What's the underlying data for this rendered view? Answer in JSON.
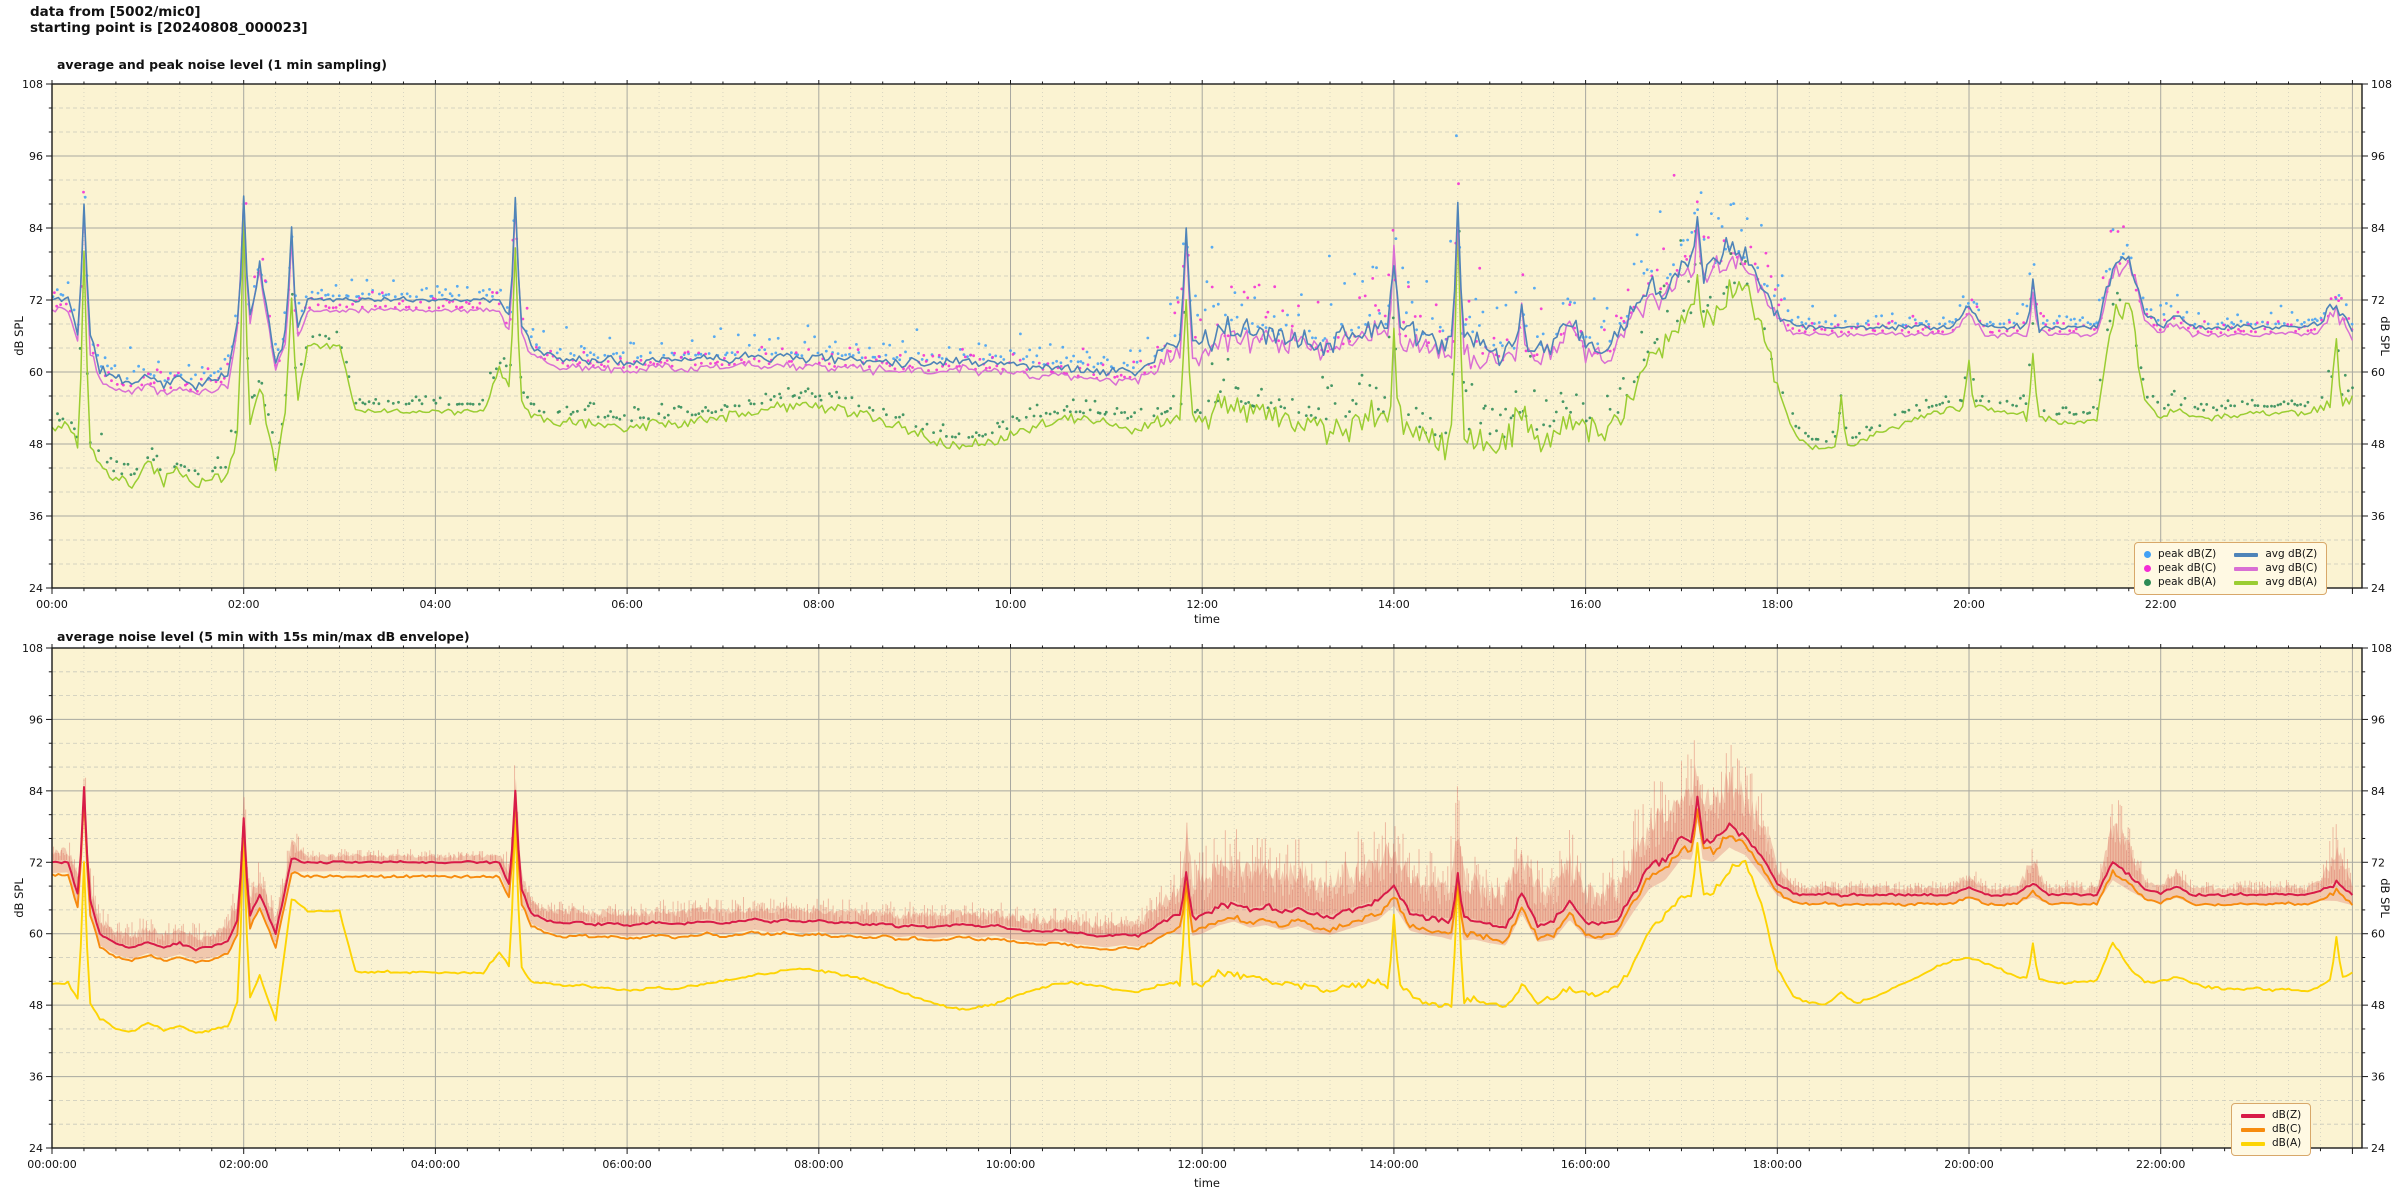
{
  "header": {
    "line1": "data from [5002/mic0]",
    "line2": "starting point is [20240808_000023]"
  },
  "colors": {
    "plot_bg": "#fbf3d2",
    "grid_major": "#a8a8a0",
    "grid_minor": "#c9c9bb",
    "frame": "#1a1a1a",
    "peak_dBZ": "#42a1f5",
    "peak_dBC": "#f42cd4",
    "peak_dBA": "#2e8b57",
    "avg_dBZ": "#4f84b8",
    "avg_dBC": "#d96fd4",
    "avg_dBA": "#9acd32",
    "dBZ": "#d81b48",
    "dBC": "#f78b0e",
    "dBA": "#fdd404",
    "envelope": "#d65a4e",
    "legend_bg": "#fff9e3",
    "legend_border": "#d8a86a"
  },
  "axes": {
    "ymin": 24,
    "ymax": 108,
    "y_major": 12,
    "y_minor": 4,
    "x_hours_max": 24.1,
    "x_major_h": 2,
    "x_minor_h": 0.3333333,
    "sample_step_h": 0.1666667,
    "y_ticklabels": [
      "24",
      "36",
      "48",
      "60",
      "72",
      "84",
      "96",
      "108"
    ]
  },
  "chart_data": [
    {
      "type": "line+scatter",
      "title": "average and peak noise level (1 min sampling)",
      "xlabel": "time",
      "ylabel": "dB SPL",
      "x_ticklabels": [
        "00:00",
        "02:00",
        "04:00",
        "06:00",
        "08:00",
        "10:00",
        "12:00",
        "14:00",
        "16:00",
        "18:00",
        "20:00",
        "22:00"
      ],
      "legend": [
        {
          "label": "peak dB(Z)",
          "swatch": "dot",
          "color_key": "peak_dBZ"
        },
        {
          "label": "peak dB(C)",
          "swatch": "dot",
          "color_key": "peak_dBC"
        },
        {
          "label": "peak dB(A)",
          "swatch": "dot",
          "color_key": "peak_dBA"
        },
        {
          "label": "avg dB(Z)",
          "swatch": "line",
          "color_key": "avg_dBZ"
        },
        {
          "label": "avg dB(C)",
          "swatch": "line",
          "color_key": "avg_dBC"
        },
        {
          "label": "avg dB(A)",
          "swatch": "line",
          "color_key": "avg_dBA"
        }
      ],
      "series": {
        "avg_dBZ": [
          72.0,
          72.2,
          88.5,
          60.5,
          59.0,
          58.2,
          59.4,
          58.0,
          59.0,
          57.8,
          58.4,
          59.6,
          89.0,
          77.5,
          61.5,
          83.0,
          72.3,
          72.1,
          72.2,
          72.0,
          72.1,
          72.0,
          72.1,
          72.0,
          72.1,
          72.0,
          72.1,
          72.0,
          72.0,
          89.0,
          64.5,
          62.8,
          62.0,
          62.4,
          61.8,
          62.2,
          61.6,
          62.0,
          62.4,
          61.8,
          62.2,
          62.6,
          62.0,
          62.5,
          63.0,
          62.4,
          62.8,
          62.2,
          62.6,
          62.0,
          62.3,
          61.7,
          62.1,
          61.5,
          61.9,
          61.3,
          61.7,
          62.1,
          61.5,
          61.9,
          61.3,
          61.0,
          60.7,
          61.1,
          60.5,
          60.2,
          59.9,
          60.3,
          60.0,
          62.0,
          64.5,
          85.0,
          65.0,
          66.5,
          67.5,
          66.0,
          66.8,
          65.5,
          66.5,
          65.0,
          64.5,
          66.0,
          67.0,
          68.0,
          80.0,
          66.5,
          65.5,
          65.0,
          88.0,
          64.5,
          63.5,
          63.0,
          71.0,
          64.0,
          64.5,
          69.0,
          64.5,
          64.0,
          65.0,
          71.0,
          74.0,
          74.5,
          78.0,
          84.5,
          77.5,
          80.5,
          78.5,
          75.0,
          70.0,
          67.8,
          67.4,
          67.6,
          67.3,
          67.5,
          67.4,
          67.6,
          67.3,
          67.5,
          67.4,
          67.6,
          71.0,
          67.5,
          67.3,
          67.6,
          74.5,
          67.4,
          67.6,
          67.4,
          67.5,
          77.5,
          79.0,
          70.0,
          67.6,
          69.5,
          67.4,
          67.5,
          67.3,
          67.6,
          67.4,
          67.5,
          67.6,
          67.4,
          68.0,
          72.0,
          67.0
        ],
        "avg_dBC": [
          70.5,
          70.7,
          87.7,
          59.0,
          57.5,
          56.7,
          57.9,
          56.5,
          57.5,
          56.3,
          56.9,
          58.1,
          88.2,
          76.7,
          60.0,
          82.2,
          70.3,
          70.3,
          70.3,
          70.3,
          70.3,
          70.3,
          70.3,
          70.3,
          70.3,
          70.3,
          70.3,
          70.3,
          70.3,
          88.2,
          63.0,
          61.3,
          60.5,
          60.9,
          60.3,
          60.7,
          60.1,
          60.5,
          60.9,
          60.3,
          60.7,
          61.1,
          60.5,
          61.0,
          61.5,
          60.9,
          61.3,
          60.7,
          61.1,
          60.5,
          60.8,
          60.2,
          60.6,
          60.0,
          60.4,
          59.8,
          60.2,
          60.6,
          60.0,
          60.4,
          59.8,
          59.5,
          59.2,
          59.6,
          59.0,
          58.7,
          58.4,
          58.8,
          58.5,
          60.5,
          63.0,
          84.2,
          63.5,
          65.0,
          66.0,
          64.5,
          65.3,
          64.0,
          65.0,
          63.5,
          63.0,
          64.5,
          65.5,
          66.5,
          79.2,
          65.0,
          64.0,
          63.5,
          87.2,
          63.0,
          62.0,
          61.5,
          69.5,
          62.5,
          63.0,
          67.5,
          63.0,
          62.5,
          63.5,
          70.0,
          73.0,
          73.5,
          77.0,
          83.7,
          76.5,
          79.5,
          77.5,
          74.0,
          69.0,
          66.6,
          66.2,
          66.4,
          66.1,
          66.3,
          66.2,
          66.4,
          66.1,
          66.3,
          66.2,
          66.4,
          69.8,
          66.3,
          66.1,
          66.4,
          73.8,
          66.2,
          66.4,
          66.2,
          66.3,
          76.7,
          78.2,
          68.8,
          66.4,
          68.3,
          66.2,
          66.3,
          66.1,
          66.4,
          66.2,
          66.3,
          66.4,
          66.2,
          66.8,
          70.8,
          65.8
        ],
        "avg_dBA": [
          50.5,
          51.0,
          80.0,
          44.0,
          42.0,
          41.3,
          44.5,
          42.0,
          43.5,
          41.0,
          42.0,
          43.0,
          84.5,
          58.0,
          44.0,
          73.5,
          64.5,
          64.3,
          64.5,
          53.6,
          53.4,
          53.6,
          53.3,
          53.5,
          53.4,
          53.3,
          53.5,
          53.2,
          60.5,
          80.0,
          52.5,
          52.0,
          51.6,
          51.9,
          51.3,
          51.0,
          50.6,
          50.9,
          51.3,
          51.0,
          51.5,
          51.9,
          52.4,
          52.9,
          53.4,
          53.8,
          54.3,
          54.6,
          54.2,
          53.8,
          53.2,
          52.6,
          51.8,
          50.8,
          49.8,
          48.8,
          48.0,
          47.6,
          47.9,
          48.6,
          49.6,
          50.6,
          51.4,
          52.0,
          52.2,
          51.8,
          51.3,
          50.8,
          50.5,
          51.5,
          52.3,
          73.0,
          52.0,
          54.0,
          53.6,
          53.1,
          52.7,
          52.3,
          51.8,
          51.2,
          50.7,
          51.4,
          52.0,
          52.6,
          67.0,
          50.5,
          48.5,
          48.0,
          86.0,
          49.5,
          48.4,
          47.9,
          52.5,
          49.0,
          50.0,
          52.0,
          50.5,
          50.0,
          51.5,
          56.0,
          63.0,
          65.0,
          68.0,
          77.0,
          69.0,
          73.0,
          74.5,
          68.0,
          57.0,
          50.0,
          47.6,
          47.2,
          56.0,
          48.0,
          49.5,
          50.5,
          51.5,
          52.5,
          53.3,
          54.0,
          62.0,
          54.0,
          53.6,
          53.0,
          64.0,
          52.0,
          51.5,
          51.8,
          52.0,
          70.0,
          71.5,
          55.0,
          52.5,
          53.5,
          52.8,
          52.3,
          52.6,
          52.9,
          53.2,
          53.0,
          53.4,
          53.1,
          54.0,
          67.0,
          56.0
        ]
      }
    },
    {
      "type": "line+envelope",
      "title": "average noise level (5 min with 15s min/max dB envelope)",
      "xlabel": "time",
      "ylabel": "dB SPL",
      "x_ticklabels": [
        "00:00:00",
        "02:00:00",
        "04:00:00",
        "06:00:00",
        "08:00:00",
        "10:00:00",
        "12:00:00",
        "14:00:00",
        "16:00:00",
        "18:00:00",
        "20:00:00",
        "22:00:00"
      ],
      "legend": [
        {
          "label": "dB(Z)",
          "swatch": "line",
          "color_key": "dBZ"
        },
        {
          "label": "dB(C)",
          "swatch": "line",
          "color_key": "dBC"
        },
        {
          "label": "dB(A)",
          "swatch": "line",
          "color_key": "dBA"
        }
      ],
      "series": {
        "dBZ": [
          72.0,
          72.1,
          84.5,
          60.0,
          58.3,
          57.6,
          58.6,
          57.7,
          58.4,
          57.4,
          57.8,
          58.8,
          79.5,
          66.5,
          60.0,
          72.5,
          72.0,
          72.0,
          72.1,
          72.0,
          72.0,
          72.0,
          72.1,
          72.0,
          72.0,
          72.0,
          72.1,
          72.0,
          72.0,
          84.0,
          63.5,
          62.2,
          61.6,
          62.0,
          61.5,
          61.8,
          61.3,
          61.6,
          62.0,
          61.5,
          61.8,
          62.2,
          61.7,
          62.1,
          62.5,
          62.0,
          62.4,
          61.9,
          62.2,
          61.7,
          62.0,
          61.4,
          61.8,
          61.2,
          61.5,
          61.0,
          61.3,
          61.7,
          61.1,
          61.5,
          60.9,
          60.6,
          60.3,
          60.7,
          60.1,
          59.8,
          59.5,
          59.9,
          59.6,
          61.0,
          62.8,
          70.0,
          63.0,
          64.5,
          65.2,
          64.0,
          64.6,
          63.6,
          64.4,
          63.2,
          62.8,
          63.8,
          64.6,
          65.4,
          68.0,
          63.5,
          62.8,
          62.4,
          70.5,
          62.2,
          61.4,
          61.0,
          66.5,
          61.6,
          62.0,
          65.5,
          62.0,
          61.6,
          62.4,
          67.0,
          71.0,
          72.5,
          76.0,
          83.0,
          75.5,
          78.0,
          76.5,
          73.0,
          68.5,
          66.8,
          66.5,
          66.7,
          66.4,
          66.6,
          66.5,
          66.7,
          66.4,
          66.6,
          66.5,
          66.7,
          67.8,
          66.6,
          66.4,
          66.7,
          68.5,
          66.5,
          66.7,
          66.5,
          66.6,
          72.0,
          70.0,
          67.5,
          66.7,
          68.0,
          66.5,
          66.6,
          66.4,
          66.7,
          66.5,
          66.6,
          66.7,
          66.5,
          67.2,
          68.5,
          66.5
        ],
        "dBC": [
          69.8,
          69.9,
          83.3,
          57.8,
          56.1,
          55.4,
          56.4,
          55.5,
          56.2,
          55.2,
          55.6,
          56.6,
          78.3,
          64.3,
          57.8,
          70.3,
          69.6,
          69.6,
          69.6,
          69.6,
          69.6,
          69.6,
          69.6,
          69.6,
          69.6,
          69.6,
          69.6,
          69.6,
          69.6,
          82.8,
          61.3,
          60.0,
          59.4,
          59.8,
          59.3,
          59.6,
          59.1,
          59.4,
          59.8,
          59.3,
          59.6,
          60.0,
          59.5,
          59.9,
          60.3,
          59.8,
          60.2,
          59.7,
          60.0,
          59.5,
          59.8,
          59.2,
          59.6,
          59.0,
          59.3,
          58.8,
          59.1,
          59.5,
          58.9,
          59.3,
          58.7,
          58.4,
          58.1,
          58.5,
          57.9,
          57.6,
          57.3,
          57.7,
          57.4,
          58.8,
          60.6,
          68.2,
          60.8,
          62.3,
          63.0,
          61.8,
          62.4,
          61.4,
          62.2,
          61.0,
          60.6,
          61.6,
          62.4,
          63.2,
          66.2,
          61.3,
          60.6,
          60.2,
          68.7,
          60.0,
          59.2,
          58.8,
          64.3,
          59.4,
          59.8,
          63.3,
          59.8,
          59.4,
          60.2,
          65.5,
          69.5,
          71.0,
          74.5,
          81.5,
          74.0,
          76.5,
          75.0,
          71.5,
          67.0,
          65.2,
          64.9,
          65.1,
          64.8,
          65.0,
          64.9,
          65.1,
          64.8,
          65.0,
          64.9,
          65.1,
          66.3,
          65.0,
          64.8,
          65.1,
          67.0,
          64.9,
          65.1,
          64.9,
          65.0,
          70.6,
          68.6,
          65.9,
          65.1,
          66.5,
          64.9,
          65.0,
          64.8,
          65.1,
          64.9,
          65.0,
          65.1,
          64.9,
          65.6,
          67.1,
          64.9
        ],
        "dBA": [
          51.5,
          51.8,
          72.0,
          45.8,
          44.0,
          43.5,
          45.0,
          43.8,
          44.4,
          43.4,
          43.8,
          44.4,
          76.0,
          53.0,
          45.5,
          66.0,
          63.8,
          63.7,
          63.8,
          53.6,
          53.5,
          53.6,
          53.4,
          53.5,
          53.5,
          53.4,
          53.5,
          53.3,
          57.0,
          79.0,
          52.0,
          51.6,
          51.2,
          51.5,
          51.0,
          50.7,
          50.4,
          50.7,
          51.0,
          50.7,
          51.2,
          51.6,
          52.0,
          52.5,
          53.0,
          53.4,
          53.9,
          54.2,
          53.8,
          53.4,
          52.8,
          52.2,
          51.4,
          50.4,
          49.4,
          48.4,
          47.7,
          47.3,
          47.6,
          48.2,
          49.2,
          50.2,
          51.0,
          51.6,
          51.8,
          51.4,
          50.9,
          50.4,
          50.2,
          51.0,
          51.8,
          69.0,
          51.5,
          53.4,
          53.0,
          52.6,
          52.2,
          51.8,
          51.3,
          50.8,
          50.3,
          51.0,
          51.6,
          52.2,
          63.0,
          50.0,
          48.2,
          47.7,
          69.5,
          49.0,
          48.0,
          47.6,
          51.5,
          48.6,
          49.5,
          51.0,
          50.0,
          49.6,
          51.0,
          55.0,
          60.5,
          63.0,
          66.0,
          75.5,
          67.0,
          70.5,
          72.0,
          65.0,
          54.0,
          49.5,
          48.3,
          48.1,
          50.0,
          48.3,
          49.5,
          50.5,
          51.8,
          53.0,
          54.5,
          55.5,
          56.0,
          55.0,
          54.0,
          52.8,
          58.5,
          52.0,
          51.6,
          51.9,
          52.1,
          58.5,
          54.5,
          51.8,
          52.0,
          52.8,
          51.6,
          51.0,
          50.8,
          50.6,
          50.9,
          50.4,
          50.7,
          50.3,
          51.2,
          59.5,
          53.5
        ]
      },
      "env_up": [
        4,
        4,
        8,
        5,
        4.5,
        4.5,
        4.5,
        4.5,
        4.5,
        4.5,
        4.5,
        5,
        9,
        6,
        4.5,
        6,
        2.2,
        2.2,
        2.2,
        2.2,
        2.2,
        2.2,
        2.2,
        2.2,
        2.2,
        2.2,
        2.2,
        2.2,
        2.2,
        8,
        4,
        4,
        4,
        4,
        4,
        4,
        4,
        4,
        4,
        4,
        4,
        4,
        4,
        4,
        4,
        4,
        4,
        4,
        4,
        4,
        4,
        4,
        4,
        4,
        4,
        4,
        4,
        4,
        4,
        4,
        4,
        4,
        4,
        4,
        4,
        4,
        4,
        4,
        4,
        6,
        8,
        15,
        12,
        13,
        13,
        12,
        13,
        12,
        13,
        12,
        12,
        13,
        13,
        13,
        14,
        12,
        12,
        12,
        16,
        13,
        12,
        12,
        13,
        12,
        12,
        13,
        10,
        10,
        11,
        14,
        15,
        15,
        15,
        14,
        15,
        16,
        14,
        13,
        6,
        2.6,
        2.4,
        2.4,
        2.4,
        2.4,
        2.4,
        2.4,
        2.4,
        2.4,
        2.4,
        2.4,
        4,
        2.4,
        2.4,
        2.4,
        8,
        2.4,
        2.4,
        2.4,
        2.4,
        12,
        10,
        3,
        2.4,
        5,
        2.4,
        2.4,
        2.4,
        2.4,
        2.4,
        2.4,
        2.4,
        2.4,
        3,
        12,
        3.5
      ]
    }
  ]
}
